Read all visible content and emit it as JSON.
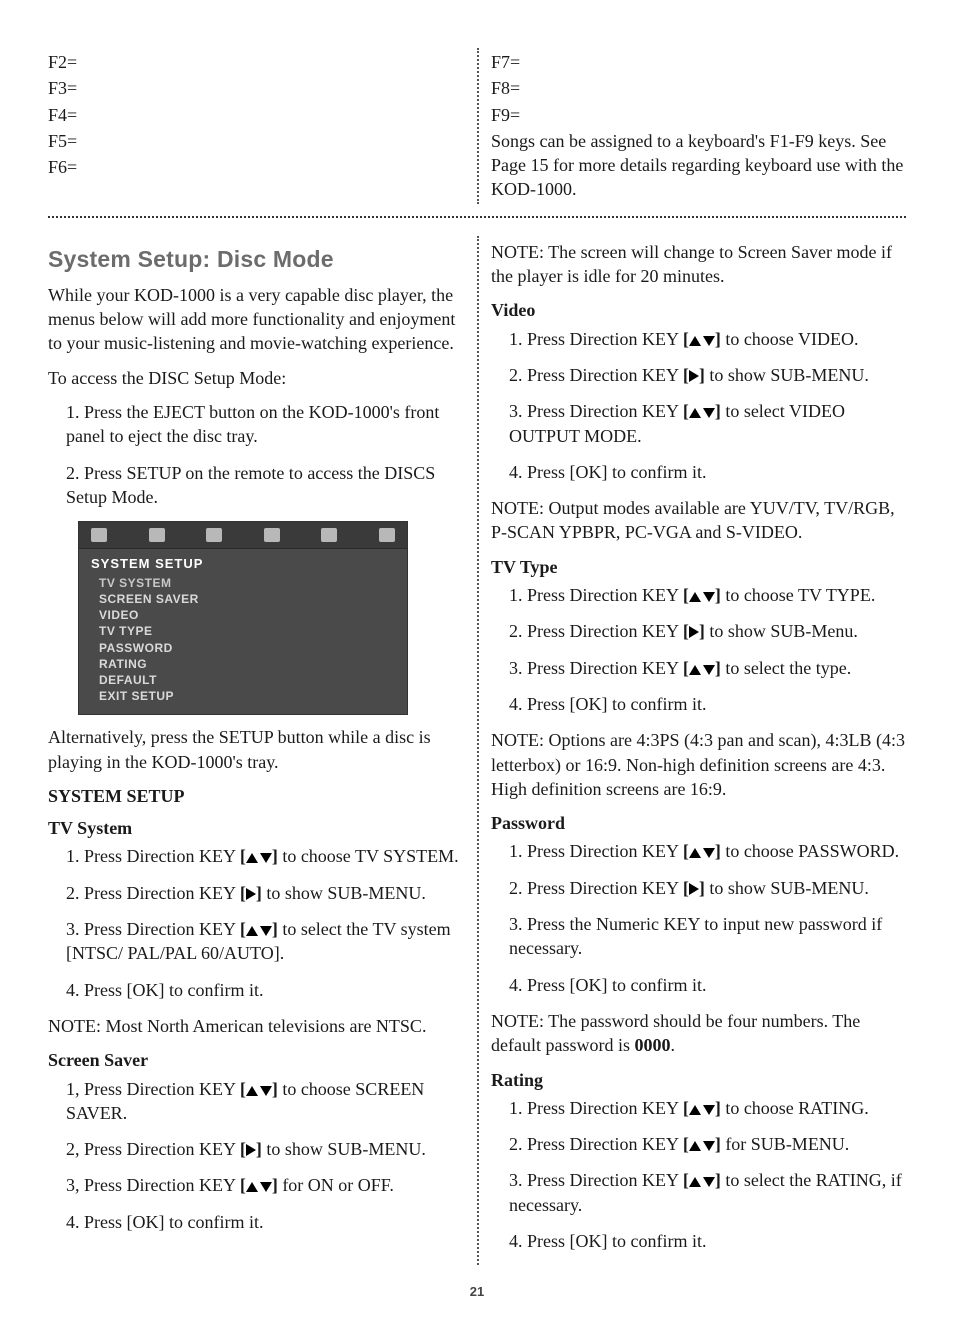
{
  "page_number": "21",
  "top": {
    "left_fkeys": [
      "F2=",
      "F3=",
      "F4=",
      "F5=",
      "F6="
    ],
    "right_fkeys": [
      "F7=",
      "F8=",
      "F9="
    ],
    "right_note": "Songs can be assigned to a keyboard's F1-F9 keys. See Page 15 for more details regarding keyboard use with the KOD-1000."
  },
  "section_title": "System Setup: Disc Mode",
  "left": {
    "intro": "While your KOD-1000 is a very capable disc player, the menus below will add more functionality and enjoyment to your music-listening and movie-watching experience.",
    "access_intro": "To access the DISC Setup Mode:",
    "access_steps": [
      "1. Press the EJECT button on the KOD-1000's front panel to eject the disc tray.",
      "2. Press SETUP on the remote to access the DISCS Setup Mode."
    ],
    "osd": {
      "title": "SYSTEM SETUP",
      "items": [
        "TV SYSTEM",
        "SCREEN SAVER",
        "VIDEO",
        "TV TYPE",
        "PASSWORD",
        "RATING",
        "DEFAULT",
        "EXIT SETUP"
      ]
    },
    "alt_note": "Alternatively, press the SETUP button while a disc is playing in the KOD-1000's tray.",
    "system_setup_heading": "SYSTEM SETUP",
    "tv_system": {
      "heading": "TV System",
      "s1a": "1. Press Direction KEY ",
      "s1b": " to choose TV SYSTEM.",
      "s2a": "2. Press Direction KEY ",
      "s2b": " to show SUB-MENU.",
      "s3a": "3. Press Direction KEY ",
      "s3b": " to select the TV system [NTSC/ PAL/PAL 60/AUTO].",
      "s4": "4. Press [OK] to confirm it.",
      "note": "NOTE: Most North American televisions are NTSC."
    },
    "screen_saver": {
      "heading": "Screen Saver",
      "s1a": "1, Press Direction KEY ",
      "s1b": " to choose SCREEN SAVER.",
      "s2a": "2, Press Direction KEY ",
      "s2b": " to show SUB-MENU.",
      "s3a": "3, Press Direction KEY ",
      "s3b": " for ON or OFF.",
      "s4": "4. Press [OK] to confirm it."
    }
  },
  "right": {
    "screen_note": "NOTE: The screen will change to Screen Saver mode if the player is idle for 20 minutes.",
    "video": {
      "heading": "Video",
      "s1a": "1. Press Direction KEY ",
      "s1b": " to choose VIDEO.",
      "s2a": "2. Press Direction KEY ",
      "s2b": " to show SUB-MENU.",
      "s3a": "3. Press Direction KEY ",
      "s3b": " to select VIDEO OUTPUT MODE.",
      "s4": "4. Press [OK] to confirm it.",
      "note": "NOTE: Output modes available are YUV/TV, TV/RGB, P-SCAN YPBPR, PC-VGA and S-VIDEO."
    },
    "tv_type": {
      "heading": "TV Type",
      "s1a": "1. Press Direction KEY ",
      "s1b": " to choose TV TYPE.",
      "s2a": "2. Press Direction KEY ",
      "s2b": " to show SUB-Menu.",
      "s3a": "3. Press Direction KEY ",
      "s3b": " to select the type.",
      "s4": "4. Press [OK] to confirm it.",
      "note": "NOTE: Options are 4:3PS (4:3 pan and scan), 4:3LB (4:3 letterbox) or 16:9. Non-high definition screens are 4:3. High definition screens are 16:9."
    },
    "password": {
      "heading": "Password",
      "s1a": "1. Press Direction KEY ",
      "s1b": " to choose PASSWORD.",
      "s2a": "2. Press Direction KEY ",
      "s2b": " to show SUB-MENU.",
      "s3": "3. Press the Numeric KEY to input new password if necessary.",
      "s4": "4. Press [OK] to confirm it.",
      "note_a": "NOTE: The password should be four numbers. The default password is ",
      "note_b": "0000",
      "note_c": "."
    },
    "rating": {
      "heading": "Rating",
      "s1a": "1. Press Direction KEY ",
      "s1b": " to choose RATING.",
      "s2a": "2. Press Direction KEY ",
      "s2b": " for SUB-MENU.",
      "s3a": "3. Press Direction KEY ",
      "s3b": " to select the RATING, if necessary.",
      "s4": "4. Press [OK] to confirm it."
    }
  }
}
